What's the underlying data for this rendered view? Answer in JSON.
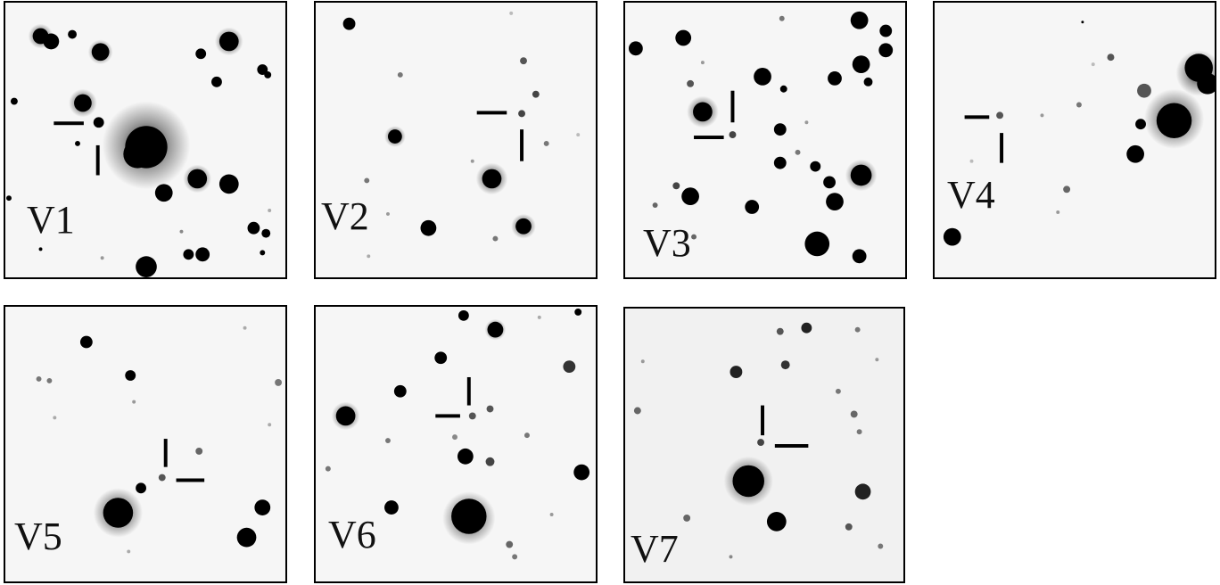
{
  "panels": [
    {
      "label": "V1"
    },
    {
      "label": "V2"
    },
    {
      "label": "V3"
    },
    {
      "label": "V4"
    },
    {
      "label": "V5"
    },
    {
      "label": "V6"
    },
    {
      "label": "V7"
    }
  ],
  "colors": {
    "star": "#000000",
    "background": "#f6f6f6",
    "marker": "#000000",
    "frame": "#000000"
  }
}
